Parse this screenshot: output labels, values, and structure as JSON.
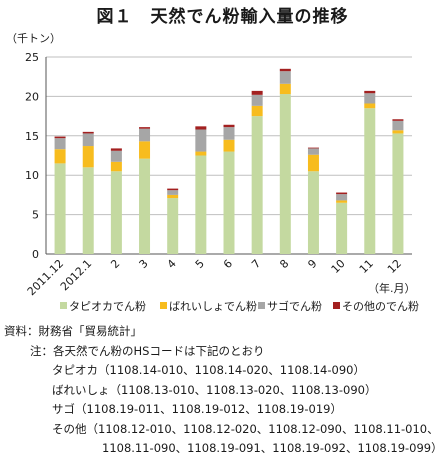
{
  "title": "図１　天然でん粉輸入量の推移",
  "chart_data": {
    "type": "bar",
    "stacked": true,
    "unit_label": "（千トン）",
    "x_unit_label": "（年.月）",
    "ylim": [
      0,
      25
    ],
    "yticks": [
      0,
      5,
      10,
      15,
      20,
      25
    ],
    "grid": true,
    "legend_position": "bottom",
    "categories": [
      "2011.12",
      "2012.1",
      "2",
      "3",
      "4",
      "5",
      "6",
      "7",
      "8",
      "9",
      "10",
      "11",
      "12"
    ],
    "series": [
      {
        "name": "タピオカでん粉",
        "color": "#c4d9a0",
        "values": [
          11.5,
          11.0,
          10.5,
          12.1,
          7.1,
          12.5,
          13.0,
          17.5,
          20.3,
          10.5,
          6.5,
          18.5,
          15.3
        ]
      },
      {
        "name": "ばれいしょでん粉",
        "color": "#f7bc1e",
        "values": [
          1.8,
          2.7,
          1.2,
          2.2,
          0.4,
          0.5,
          1.5,
          1.3,
          1.3,
          2.1,
          0.3,
          0.6,
          0.4
        ]
      },
      {
        "name": "サゴでん粉",
        "color": "#a6a6a6",
        "values": [
          1.4,
          1.6,
          1.4,
          1.6,
          0.6,
          2.8,
          1.6,
          1.4,
          1.6,
          0.8,
          0.8,
          1.3,
          1.2
        ]
      },
      {
        "name": "その他のでん粉",
        "color": "#a32020",
        "values": [
          0.2,
          0.2,
          0.3,
          0.2,
          0.2,
          0.4,
          0.3,
          0.5,
          0.3,
          0.1,
          0.2,
          0.3,
          0.2
        ]
      }
    ]
  },
  "notes": {
    "source": "資料：財務省「貿易統計」",
    "note_heading": "注：各天然でん粉のHSコードは下記のとおり",
    "tapioca": "タピオカ（1108.14-010、1108.14-020、1108.14-090）",
    "potato": "ばれいしょ（1108.13-010、1108.13-020、1108.13-090）",
    "sago": "サゴ（1108.19-011、1108.19-012、1108.19-019）",
    "other_1": "その他（1108.12-010、1108.12-020、1108.12-090、1108.11-010、",
    "other_2": "1108.11-090、1108.19-091、1108.19-092、1108.19-099）"
  }
}
